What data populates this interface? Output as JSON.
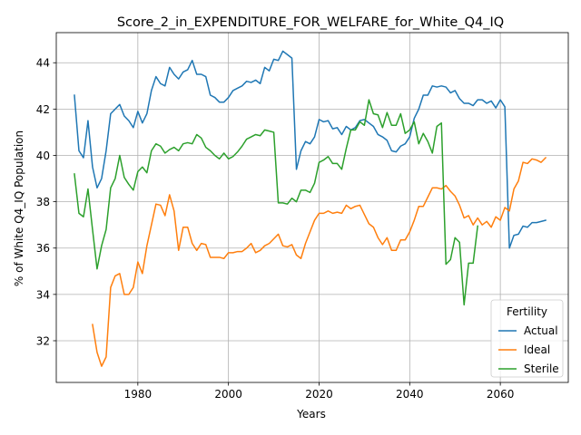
{
  "chart_data": {
    "type": "line",
    "title": "Score_2_in_EXPENDITURE_FOR_WELFARE_for_White_Q4_IQ",
    "xlabel": "Years",
    "ylabel": "% of White Q4_IQ Population",
    "xlim": [
      1962,
      2075
    ],
    "ylim": [
      30.2,
      45.3
    ],
    "xticks": [
      1980,
      2000,
      2020,
      2040,
      2060
    ],
    "yticks": [
      32,
      34,
      36,
      38,
      40,
      42,
      44
    ],
    "grid": true,
    "legend": {
      "title": "Fertility",
      "placement": "lower-right"
    },
    "series": [
      {
        "name": "Actual",
        "color": "#1f77b4",
        "x": [
          1966,
          1967,
          1968,
          1969,
          1970,
          1971,
          1972,
          1973,
          1974,
          1975,
          1976,
          1977,
          1978,
          1979,
          1980,
          1981,
          1982,
          1983,
          1984,
          1985,
          1986,
          1987,
          1988,
          1989,
          1990,
          1991,
          1992,
          1993,
          1994,
          1995,
          1996,
          1997,
          1998,
          1999,
          2000,
          2001,
          2002,
          2003,
          2004,
          2005,
          2006,
          2007,
          2008,
          2009,
          2010,
          2011,
          2012,
          2013,
          2014,
          2015,
          2016,
          2017,
          2018,
          2019,
          2020,
          2021,
          2022,
          2023,
          2024,
          2025,
          2026,
          2027,
          2028,
          2029,
          2030,
          2031,
          2032,
          2033,
          2034,
          2035,
          2036,
          2037,
          2038,
          2039,
          2040,
          2041,
          2042,
          2043,
          2044,
          2045,
          2046,
          2047,
          2048,
          2049,
          2050,
          2051,
          2052,
          2053,
          2054,
          2055,
          2056,
          2057,
          2058,
          2059,
          2060,
          2061,
          2062,
          2063,
          2064,
          2065,
          2066,
          2067,
          2068,
          2069,
          2070
        ],
        "y": [
          42.6,
          40.2,
          39.9,
          41.5,
          39.5,
          38.6,
          39.0,
          40.2,
          41.8,
          42.0,
          42.2,
          41.7,
          41.5,
          41.2,
          41.9,
          41.4,
          41.8,
          42.8,
          43.4,
          43.1,
          43.0,
          43.8,
          43.5,
          43.3,
          43.6,
          43.7,
          44.1,
          43.5,
          43.5,
          43.4,
          42.6,
          42.5,
          42.3,
          42.3,
          42.5,
          42.8,
          42.9,
          43.0,
          43.2,
          43.15,
          43.25,
          43.1,
          43.8,
          43.65,
          44.15,
          44.1,
          44.5,
          44.35,
          44.2,
          39.4,
          40.2,
          40.6,
          40.5,
          40.8,
          41.55,
          41.45,
          41.5,
          41.15,
          41.2,
          40.9,
          41.25,
          41.1,
          41.2,
          41.5,
          41.55,
          41.4,
          41.25,
          40.9,
          40.8,
          40.65,
          40.2,
          40.15,
          40.4,
          40.5,
          40.8,
          41.6,
          42.0,
          42.6,
          42.6,
          43.0,
          42.95,
          43.0,
          42.95,
          42.7,
          42.8,
          42.45,
          42.25,
          42.25,
          42.15,
          42.4,
          42.4,
          42.25,
          42.35,
          42.05,
          42.4,
          42.1,
          36.0,
          36.55,
          36.6,
          36.95,
          36.9,
          37.1,
          37.1,
          37.15,
          37.2
        ]
      },
      {
        "name": "Ideal",
        "color": "#ff7f0e",
        "x": [
          1970,
          1971,
          1972,
          1973,
          1974,
          1975,
          1976,
          1977,
          1978,
          1979,
          1980,
          1981,
          1982,
          1983,
          1984,
          1985,
          1986,
          1987,
          1988,
          1989,
          1990,
          1991,
          1992,
          1993,
          1994,
          1995,
          1996,
          1997,
          1998,
          1999,
          2000,
          2001,
          2002,
          2003,
          2004,
          2005,
          2006,
          2007,
          2008,
          2009,
          2010,
          2011,
          2012,
          2013,
          2014,
          2015,
          2016,
          2017,
          2018,
          2019,
          2020,
          2021,
          2022,
          2023,
          2024,
          2025,
          2026,
          2027,
          2028,
          2029,
          2030,
          2031,
          2032,
          2033,
          2034,
          2035,
          2036,
          2037,
          2038,
          2039,
          2040,
          2041,
          2042,
          2043,
          2044,
          2045,
          2046,
          2047,
          2048,
          2049,
          2050,
          2051,
          2052,
          2053,
          2054,
          2055,
          2056,
          2057,
          2058,
          2059,
          2060,
          2061,
          2062,
          2063,
          2064,
          2065,
          2066,
          2067,
          2068,
          2069,
          2070
        ],
        "y": [
          32.7,
          31.5,
          30.9,
          31.3,
          34.3,
          34.8,
          34.9,
          34.0,
          34.0,
          34.3,
          35.4,
          34.9,
          36.1,
          37.0,
          37.9,
          37.85,
          37.4,
          38.3,
          37.6,
          35.9,
          36.9,
          36.9,
          36.2,
          35.9,
          36.2,
          36.15,
          35.6,
          35.6,
          35.6,
          35.55,
          35.8,
          35.8,
          35.85,
          35.85,
          36.0,
          36.2,
          35.8,
          35.9,
          36.1,
          36.2,
          36.4,
          36.6,
          36.1,
          36.05,
          36.15,
          35.7,
          35.55,
          36.2,
          36.7,
          37.2,
          37.5,
          37.5,
          37.6,
          37.5,
          37.55,
          37.5,
          37.85,
          37.7,
          37.8,
          37.85,
          37.45,
          37.05,
          36.9,
          36.45,
          36.15,
          36.45,
          35.9,
          35.9,
          36.35,
          36.35,
          36.7,
          37.2,
          37.8,
          37.8,
          38.2,
          38.6,
          38.6,
          38.55,
          38.7,
          38.45,
          38.25,
          37.85,
          37.3,
          37.4,
          37.0,
          37.3,
          37.0,
          37.15,
          36.9,
          37.35,
          37.2,
          37.75,
          37.6,
          38.55,
          38.9,
          39.7,
          39.65,
          39.85,
          39.8,
          39.7,
          39.9
        ]
      },
      {
        "name": "Sterile",
        "color": "#2ca02c",
        "x": [
          1966,
          1967,
          1968,
          1969,
          1970,
          1971,
          1972,
          1973,
          1974,
          1975,
          1976,
          1977,
          1978,
          1979,
          1980,
          1981,
          1982,
          1983,
          1984,
          1985,
          1986,
          1987,
          1988,
          1989,
          1990,
          1991,
          1992,
          1993,
          1994,
          1995,
          1996,
          1997,
          1998,
          1999,
          2000,
          2001,
          2002,
          2003,
          2004,
          2005,
          2006,
          2007,
          2008,
          2009,
          2010,
          2011,
          2012,
          2013,
          2014,
          2015,
          2016,
          2017,
          2018,
          2019,
          2020,
          2021,
          2022,
          2023,
          2024,
          2025,
          2026,
          2027,
          2028,
          2029,
          2030,
          2031,
          2032,
          2033,
          2034,
          2035,
          2036,
          2037,
          2038,
          2039,
          2040,
          2041,
          2042,
          2043,
          2044,
          2045,
          2046,
          2047,
          2048,
          2049,
          2050,
          2051,
          2052,
          2053,
          2054,
          2055
        ],
        "y": [
          39.2,
          37.5,
          37.35,
          38.55,
          36.8,
          35.1,
          36.1,
          36.8,
          38.6,
          39.0,
          40.0,
          39.05,
          38.75,
          38.5,
          39.3,
          39.5,
          39.25,
          40.2,
          40.5,
          40.4,
          40.1,
          40.25,
          40.35,
          40.2,
          40.5,
          40.55,
          40.5,
          40.9,
          40.75,
          40.35,
          40.2,
          40.0,
          39.85,
          40.1,
          39.85,
          39.95,
          40.15,
          40.4,
          40.7,
          40.8,
          40.9,
          40.85,
          41.1,
          41.05,
          41.0,
          37.95,
          37.95,
          37.9,
          38.15,
          38.0,
          38.5,
          38.5,
          38.4,
          38.8,
          39.7,
          39.8,
          39.95,
          39.65,
          39.65,
          39.4,
          40.3,
          41.1,
          41.1,
          41.45,
          41.3,
          42.4,
          41.8,
          41.75,
          41.2,
          41.85,
          41.3,
          41.3,
          41.8,
          40.95,
          41.1,
          41.45,
          40.5,
          40.95,
          40.6,
          40.1,
          41.25,
          41.4,
          35.3,
          35.5,
          36.45,
          36.25,
          33.55,
          35.35,
          35.35,
          36.95
        ]
      }
    ]
  }
}
